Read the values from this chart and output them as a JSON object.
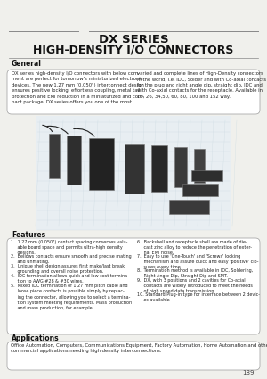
{
  "title_line1": "DX SERIES",
  "title_line2": "HIGH-DENSITY I/O CONNECTORS",
  "bg_color": "#f0f0ec",
  "page_number": "189",
  "general_title": "General",
  "general_left": "DX series high-density I/O connectors with below com-\nment are perfect for tomorrow's miniaturized electronic\ndevices. The new 1.27 mm (0.050\") interconnect design\nensures positive locking, effortless coupling, metal tail\nprotection and EMI reduction in a miniaturized and com-\npact package. DX series offers you one of the most",
  "general_right": "varied and complete lines of High-Density connectors\nin the world, i.e. IDC, Solder and with Co-axial contacts\nfor the plug and right angle dip, straight dip, IDC and\nwith Co-axial contacts for the receptacle. Available in\n10, 26, 34,50, 60, 80, 100 and 152 way.",
  "features_title": "Features",
  "feat_left": [
    "1.  1.27 mm (0.050\") contact spacing conserves valu-\n     able board space and permits ultra-high density\n     designs.",
    "2.  Bellows contacts ensure smooth and precise mating\n     and unmating.",
    "3.  Unique shell design assures first make/last break\n     grounding and overall noise protection.",
    "4.  IDC termination allows quick and low cost termina-\n     tion to AWG #28 & #30 wires.",
    "5.  Mixed IDC termination of 1.27 mm pitch cable and\n     loose piece contacts is possible simply by replac-\n     ing the connector, allowing you to select a termina-\n     tion system meeting requirements. Mass production\n     and mass production, for example."
  ],
  "feat_right": [
    "6.  Backshell and receptacle shell are made of die-\n     cast zinc alloy to reduce the penetration of exter-\n     nal EMI noise.",
    "7.  Easy to use 'One-Touch' and 'Screws' locking\n     mechanism and assure quick and easy 'positive' clo-\n     sures every time.",
    "8.  Termination method is available in IDC, Soldering,\n     Right Angle Dip, Straight Dip and SMT.",
    "9.  DX, with 3 positions and 2 cavities for Co-axial\n     contacts are widely introduced to meet the needs\n     of high speed data transmission.",
    "10. Standard Plug-in type for interface between 2 devic-\n     es available."
  ],
  "applications_title": "Applications",
  "applications_text": "Office Automation, Computers, Communications Equipment, Factory Automation, Home Automation and other\ncommercial applications needing high density interconnections.",
  "sep_color": "#888888",
  "box_edge_color": "#aaaaaa",
  "text_color": "#222222",
  "title_color": "#111111"
}
